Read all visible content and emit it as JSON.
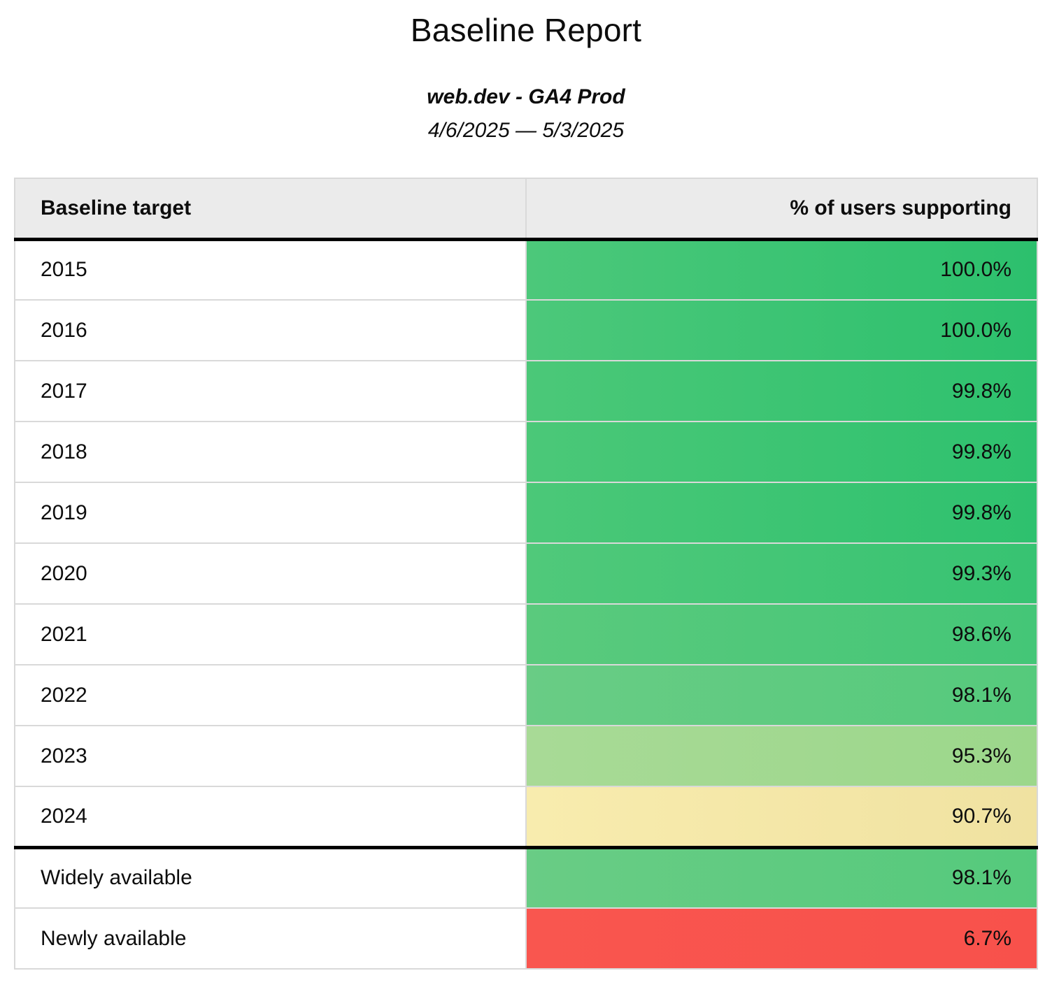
{
  "report": {
    "title": "Baseline Report",
    "subtitle": "web.dev - GA4 Prod",
    "date_range": "4/6/2025 — 5/3/2025"
  },
  "table": {
    "columns": [
      "Baseline target",
      "% of users supporting"
    ],
    "rows": [
      {
        "label": "2015",
        "value": "100.0%",
        "bg_left": "#4cc87a",
        "bg_right": "#2cc06d",
        "thick_top": false
      },
      {
        "label": "2016",
        "value": "100.0%",
        "bg_left": "#4cc87a",
        "bg_right": "#2cc06d",
        "thick_top": false
      },
      {
        "label": "2017",
        "value": "99.8%",
        "bg_left": "#4bc878",
        "bg_right": "#2ec16e",
        "thick_top": false
      },
      {
        "label": "2018",
        "value": "99.8%",
        "bg_left": "#4bc878",
        "bg_right": "#2ec16e",
        "thick_top": false
      },
      {
        "label": "2019",
        "value": "99.8%",
        "bg_left": "#4bc878",
        "bg_right": "#2ec16e",
        "thick_top": false
      },
      {
        "label": "2020",
        "value": "99.3%",
        "bg_left": "#50c97a",
        "bg_right": "#37c372",
        "thick_top": false
      },
      {
        "label": "2021",
        "value": "98.6%",
        "bg_left": "#5aca7d",
        "bg_right": "#44c677",
        "thick_top": false
      },
      {
        "label": "2022",
        "value": "98.1%",
        "bg_left": "#69cc85",
        "bg_right": "#55ca7c",
        "thick_top": false
      },
      {
        "label": "2023",
        "value": "95.3%",
        "bg_left": "#a8da96",
        "bg_right": "#9cd78b",
        "thick_top": false
      },
      {
        "label": "2024",
        "value": "90.7%",
        "bg_left": "#f8ecae",
        "bg_right": "#f0e2a1",
        "thick_top": false
      },
      {
        "label": "Widely available",
        "value": "98.1%",
        "bg_left": "#69cc85",
        "bg_right": "#55ca7c",
        "thick_top": true
      },
      {
        "label": "Newly available",
        "value": "6.7%",
        "bg_left": "#f9564f",
        "bg_right": "#f8514b",
        "thick_top": false
      }
    ]
  },
  "colors": {
    "header_background": "#ebebeb",
    "grid_border": "#d9d9d9",
    "section_border": "#000000",
    "scale_high_green": "#2cc06d",
    "scale_mid_green": "#9cd78b",
    "scale_low_yellow": "#f0e2a1",
    "scale_fail_red": "#f8514b"
  },
  "chart_data": {
    "type": "table",
    "title": "Baseline Report",
    "subtitle": "web.dev - GA4 Prod",
    "date_range": "4/6/2025 — 5/3/2025",
    "columns": [
      "Baseline target",
      "% of users supporting"
    ],
    "rows": [
      [
        "2015",
        100.0
      ],
      [
        "2016",
        100.0
      ],
      [
        "2017",
        99.8
      ],
      [
        "2018",
        99.8
      ],
      [
        "2019",
        99.8
      ],
      [
        "2020",
        99.3
      ],
      [
        "2021",
        98.6
      ],
      [
        "2022",
        98.1
      ],
      [
        "2023",
        95.3
      ],
      [
        "2024",
        90.7
      ],
      [
        "Widely available",
        98.1
      ],
      [
        "Newly available",
        6.7
      ]
    ],
    "value_unit": "%",
    "layout_hints": {
      "value_column_coloring": "red-yellow-green heatmap by value, horizontal light-to-dark gradient per cell",
      "value_alignment": "right",
      "section_break_before_row": "Widely available"
    }
  }
}
